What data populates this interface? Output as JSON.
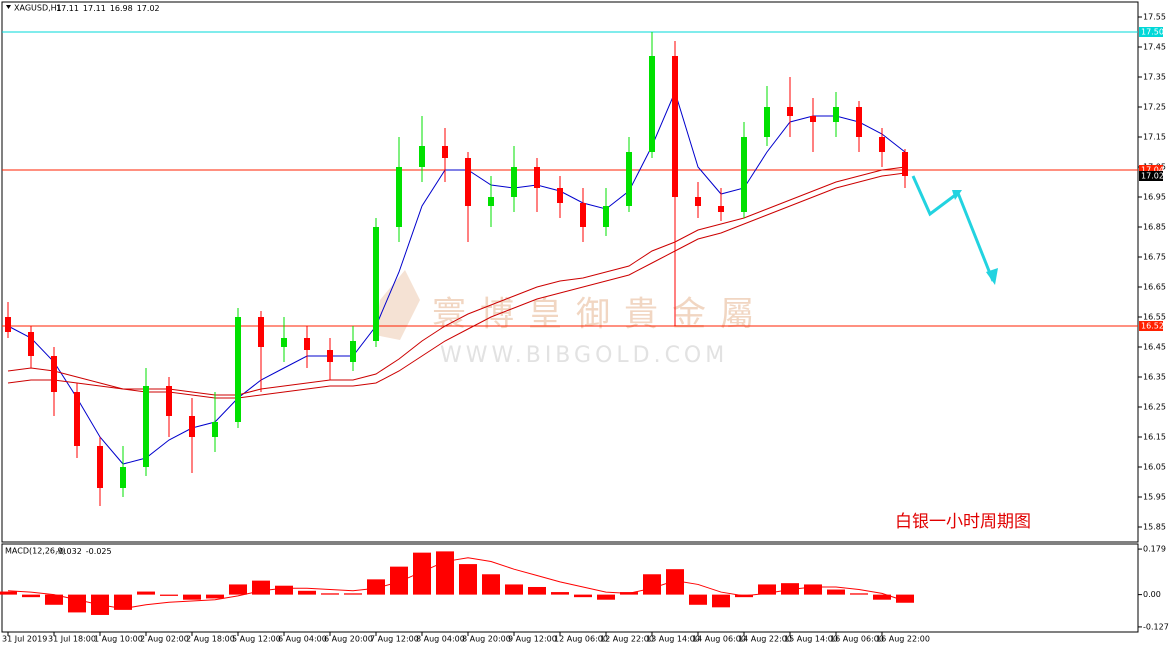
{
  "chart_data": {
    "type": "candlestick",
    "title": "XAGUSD,H1",
    "ohlc_info": [
      17.11,
      17.11,
      16.98,
      17.02
    ],
    "watermark": "寰博皇御貴金屬",
    "watermark_url": "WWW.BIBGOLD.COM",
    "annotation": "白银一小时周期图",
    "up_color": "#00e000",
    "down_color": "#ff0000",
    "categories": [
      "31 Jul 2019",
      null,
      "31 Jul 18:00",
      null,
      "1 Aug 10:00",
      null,
      "2 Aug 02:00",
      null,
      "2 Aug 18:00",
      null,
      "5 Aug 12:00",
      null,
      "6 Aug 04:00",
      null,
      "6 Aug 20:00",
      null,
      "7 Aug 12:00",
      null,
      "8 Aug 04:00",
      null,
      "8 Aug 20:00",
      null,
      "9 Aug 12:00",
      null,
      "12 Aug 06:00",
      null,
      "12 Aug 22:00",
      null,
      "13 Aug 14:00",
      null,
      "14 Aug 06:00",
      null,
      "14 Aug 22:00",
      null,
      "15 Aug 14:00",
      null,
      "16 Aug 06:00",
      null,
      "16 Aug 22:00",
      null
    ],
    "open": [
      16.55,
      16.5,
      16.42,
      16.3,
      16.12,
      15.98,
      16.05,
      16.32,
      16.22,
      16.15,
      16.2,
      16.55,
      16.45,
      16.48,
      16.44,
      16.4,
      16.47,
      16.85,
      17.05,
      17.12,
      17.08,
      16.92,
      16.95,
      17.05,
      16.98,
      16.93,
      16.85,
      16.92,
      17.1,
      17.42,
      16.95,
      16.92,
      16.9,
      17.15,
      17.25,
      17.22,
      17.2,
      17.25,
      17.15,
      17.1
    ],
    "high": [
      16.6,
      16.52,
      16.45,
      16.33,
      16.15,
      16.12,
      16.38,
      16.35,
      16.28,
      16.3,
      16.58,
      16.57,
      16.55,
      16.52,
      16.48,
      16.52,
      16.88,
      17.15,
      17.22,
      17.18,
      17.1,
      17.02,
      17.12,
      17.08,
      17.02,
      16.98,
      16.98,
      17.15,
      17.5,
      17.47,
      17.0,
      16.98,
      17.2,
      17.32,
      17.35,
      17.28,
      17.3,
      17.27,
      17.18,
      17.11
    ],
    "low": [
      16.48,
      16.38,
      16.22,
      16.08,
      15.92,
      15.95,
      16.02,
      16.15,
      16.03,
      16.1,
      16.18,
      16.3,
      16.4,
      16.38,
      16.34,
      16.37,
      16.45,
      16.8,
      17.0,
      17.0,
      16.8,
      16.85,
      16.9,
      16.9,
      16.88,
      16.8,
      16.82,
      16.9,
      17.08,
      16.52,
      16.88,
      16.87,
      16.88,
      17.12,
      17.15,
      17.1,
      17.15,
      17.1,
      17.05,
      16.98
    ],
    "close": [
      16.5,
      16.42,
      16.3,
      16.12,
      15.98,
      16.05,
      16.32,
      16.22,
      16.15,
      16.2,
      16.55,
      16.45,
      16.48,
      16.44,
      16.4,
      16.47,
      16.85,
      17.05,
      17.12,
      17.08,
      16.92,
      16.95,
      17.05,
      16.98,
      16.93,
      16.85,
      16.92,
      17.1,
      17.42,
      16.95,
      16.92,
      16.9,
      17.15,
      17.25,
      17.22,
      17.2,
      17.25,
      17.15,
      17.1,
      17.02
    ],
    "lines": [
      {
        "color": "#0000cc",
        "values": [
          16.52,
          16.48,
          16.4,
          16.28,
          16.15,
          16.06,
          16.08,
          16.14,
          16.18,
          16.2,
          16.28,
          16.34,
          16.38,
          16.42,
          16.42,
          16.42,
          16.52,
          16.7,
          16.92,
          17.04,
          17.04,
          16.99,
          16.98,
          16.99,
          16.97,
          16.93,
          16.91,
          16.97,
          17.12,
          17.3,
          17.05,
          16.96,
          16.98,
          17.1,
          17.2,
          17.22,
          17.22,
          17.2,
          17.16,
          17.1
        ]
      },
      {
        "color": "#cc0000",
        "values": [
          16.37,
          16.38,
          16.37,
          16.35,
          16.33,
          16.31,
          16.31,
          16.31,
          16.3,
          16.29,
          16.29,
          16.31,
          16.32,
          16.33,
          16.34,
          16.34,
          16.36,
          16.41,
          16.47,
          16.52,
          16.56,
          16.59,
          16.62,
          16.65,
          16.67,
          16.68,
          16.7,
          16.72,
          16.77,
          16.8,
          16.84,
          16.86,
          16.88,
          16.91,
          16.94,
          16.97,
          17.0,
          17.02,
          17.04,
          17.05
        ]
      },
      {
        "color": "#cc0000",
        "values": [
          16.33,
          16.34,
          16.34,
          16.33,
          16.32,
          16.31,
          16.3,
          16.3,
          16.29,
          16.28,
          16.28,
          16.29,
          16.3,
          16.31,
          16.32,
          16.32,
          16.33,
          16.37,
          16.42,
          16.47,
          16.51,
          16.55,
          16.58,
          16.61,
          16.63,
          16.65,
          16.67,
          16.69,
          16.73,
          16.77,
          16.81,
          16.83,
          16.86,
          16.89,
          16.92,
          16.95,
          16.98,
          17.0,
          17.02,
          17.03
        ]
      }
    ],
    "ylim": [
      15.8,
      17.6
    ],
    "yticks": [
      17.55,
      17.45,
      17.35,
      17.25,
      17.15,
      17.05,
      16.95,
      16.85,
      16.75,
      16.65,
      16.55,
      16.45,
      16.35,
      16.25,
      16.15,
      16.05,
      15.95,
      15.85
    ],
    "levels": [
      {
        "value": 17.5,
        "label": "17.50",
        "color": "#00d8d8"
      },
      {
        "value": 17.04,
        "color": "#ff2000"
      },
      {
        "value": 16.52,
        "color": "#ff2000"
      }
    ],
    "last_price": 17.02,
    "macd": {
      "title": "MACD(12,26,9)",
      "info": [
        -0.032,
        -0.025
      ],
      "color": "#ff0000",
      "signal_color": "#ff0000",
      "histogram": [
        0.012,
        -0.01,
        -0.04,
        -0.07,
        -0.08,
        -0.06,
        0.012,
        -0.005,
        -0.02,
        -0.015,
        0.04,
        0.055,
        0.035,
        0.015,
        0.005,
        0.005,
        0.06,
        0.11,
        0.165,
        0.17,
        0.12,
        0.08,
        0.04,
        0.03,
        0.01,
        -0.01,
        -0.02,
        0.01,
        0.08,
        0.1,
        -0.04,
        -0.05,
        -0.01,
        0.04,
        0.045,
        0.04,
        0.02,
        0.005,
        -0.02,
        -0.032
      ],
      "signal": [
        0.015,
        0.01,
        0.0,
        -0.02,
        -0.04,
        -0.055,
        -0.04,
        -0.03,
        -0.025,
        -0.02,
        -0.005,
        0.015,
        0.025,
        0.025,
        0.02,
        0.015,
        0.025,
        0.05,
        0.09,
        0.13,
        0.145,
        0.13,
        0.1,
        0.075,
        0.05,
        0.03,
        0.01,
        0.005,
        0.025,
        0.055,
        0.04,
        0.01,
        -0.005,
        0.005,
        0.02,
        0.03,
        0.03,
        0.02,
        0.005,
        -0.025
      ],
      "ylim": [
        -0.147,
        0.199
      ],
      "yticks": [
        0.179,
        {
          "value": 0,
          "label": "0.00"
        },
        -0.127
      ]
    }
  }
}
